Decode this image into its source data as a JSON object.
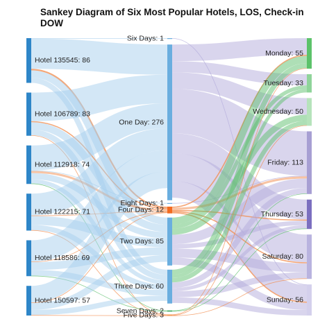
{
  "chart_data": {
    "type": "sankey",
    "title": "Sankey Diagram of Six Most Popular Hotels, LOS, Check-in DOW",
    "columns": [
      {
        "name": "hotel",
        "nodes": [
          {
            "id": "h135545",
            "label": "Hotel 135545: 86",
            "value": 86
          },
          {
            "id": "h106789",
            "label": "Hotel 106789: 83",
            "value": 83
          },
          {
            "id": "h112918",
            "label": "Hotel 112918: 74",
            "value": 74
          },
          {
            "id": "h122215",
            "label": "Hotel 122215: 71",
            "value": 71
          },
          {
            "id": "h118586",
            "label": "Hotel 118586: 69",
            "value": 69
          },
          {
            "id": "h150597",
            "label": "Hotel 150597: 57",
            "value": 57
          }
        ]
      },
      {
        "name": "los",
        "nodes": [
          {
            "id": "six",
            "label": "Six Days: 1",
            "value": 1
          },
          {
            "id": "one",
            "label": "One Day: 276",
            "value": 276
          },
          {
            "id": "eight",
            "label": "Eight Days: 1",
            "value": 1
          },
          {
            "id": "four",
            "label": "Four Days: 12",
            "value": 12
          },
          {
            "id": "two",
            "label": "Two Days: 85",
            "value": 85
          },
          {
            "id": "three",
            "label": "Three Days: 60",
            "value": 60
          },
          {
            "id": "seven",
            "label": "Seven Days: 2",
            "value": 2
          },
          {
            "id": "five",
            "label": "Five Days: 3",
            "value": 3
          }
        ]
      },
      {
        "name": "dow",
        "nodes": [
          {
            "id": "mon",
            "label": "Monday: 55",
            "value": 55
          },
          {
            "id": "tue",
            "label": "Tuesday: 33",
            "value": 33
          },
          {
            "id": "wed",
            "label": "Wednesday: 50",
            "value": 50
          },
          {
            "id": "fri",
            "label": "Friday: 113",
            "value": 113
          },
          {
            "id": "thu",
            "label": "Thursday: 53",
            "value": 53
          },
          {
            "id": "sat",
            "label": "Saturday: 80",
            "value": 80
          },
          {
            "id": "sun",
            "label": "Sunday: 56",
            "value": 56
          }
        ]
      }
    ],
    "links": [
      {
        "source": "h135545",
        "target": "six",
        "value": 1
      },
      {
        "source": "h135545",
        "target": "one",
        "value": 58
      },
      {
        "source": "h135545",
        "target": "four",
        "value": 3
      },
      {
        "source": "h135545",
        "target": "two",
        "value": 14
      },
      {
        "source": "h135545",
        "target": "three",
        "value": 10
      },
      {
        "source": "h106789",
        "target": "one",
        "value": 55
      },
      {
        "source": "h106789",
        "target": "four",
        "value": 2
      },
      {
        "source": "h106789",
        "target": "two",
        "value": 14
      },
      {
        "source": "h106789",
        "target": "three",
        "value": 11
      },
      {
        "source": "h106789",
        "target": "five",
        "value": 1
      },
      {
        "source": "h112918",
        "target": "one",
        "value": 48
      },
      {
        "source": "h112918",
        "target": "eight",
        "value": 1
      },
      {
        "source": "h112918",
        "target": "four",
        "value": 4
      },
      {
        "source": "h112918",
        "target": "two",
        "value": 12
      },
      {
        "source": "h112918",
        "target": "three",
        "value": 8
      },
      {
        "source": "h112918",
        "target": "seven",
        "value": 1
      },
      {
        "source": "h122215",
        "target": "one",
        "value": 42
      },
      {
        "source": "h122215",
        "target": "four",
        "value": 1
      },
      {
        "source": "h122215",
        "target": "two",
        "value": 17
      },
      {
        "source": "h122215",
        "target": "three",
        "value": 10
      },
      {
        "source": "h122215",
        "target": "five",
        "value": 1
      },
      {
        "source": "h118586",
        "target": "one",
        "value": 41
      },
      {
        "source": "h118586",
        "target": "four",
        "value": 1
      },
      {
        "source": "h118586",
        "target": "two",
        "value": 15
      },
      {
        "source": "h118586",
        "target": "three",
        "value": 11
      },
      {
        "source": "h118586",
        "target": "seven",
        "value": 1
      },
      {
        "source": "h150597",
        "target": "one",
        "value": 32
      },
      {
        "source": "h150597",
        "target": "four",
        "value": 1
      },
      {
        "source": "h150597",
        "target": "two",
        "value": 13
      },
      {
        "source": "h150597",
        "target": "three",
        "value": 10
      },
      {
        "source": "h150597",
        "target": "five",
        "value": 1
      },
      {
        "source": "six",
        "target": "sun",
        "value": 1
      },
      {
        "source": "one",
        "target": "mon",
        "value": 30
      },
      {
        "source": "one",
        "target": "tue",
        "value": 20
      },
      {
        "source": "one",
        "target": "wed",
        "value": 30
      },
      {
        "source": "one",
        "target": "fri",
        "value": 80
      },
      {
        "source": "one",
        "target": "thu",
        "value": 36
      },
      {
        "source": "one",
        "target": "sat",
        "value": 50
      },
      {
        "source": "one",
        "target": "sun",
        "value": 30
      },
      {
        "source": "eight",
        "target": "fri",
        "value": 1
      },
      {
        "source": "four",
        "target": "mon",
        "value": 2
      },
      {
        "source": "four",
        "target": "fri",
        "value": 4
      },
      {
        "source": "four",
        "target": "thu",
        "value": 2
      },
      {
        "source": "four",
        "target": "sat",
        "value": 2
      },
      {
        "source": "four",
        "target": "sun",
        "value": 2
      },
      {
        "source": "two",
        "target": "mon",
        "value": 13
      },
      {
        "source": "two",
        "target": "tue",
        "value": 7
      },
      {
        "source": "two",
        "target": "wed",
        "value": 11
      },
      {
        "source": "two",
        "target": "fri",
        "value": 17
      },
      {
        "source": "two",
        "target": "thu",
        "value": 8
      },
      {
        "source": "two",
        "target": "sat",
        "value": 16
      },
      {
        "source": "two",
        "target": "sun",
        "value": 13
      },
      {
        "source": "three",
        "target": "mon",
        "value": 9
      },
      {
        "source": "three",
        "target": "tue",
        "value": 6
      },
      {
        "source": "three",
        "target": "wed",
        "value": 8
      },
      {
        "source": "three",
        "target": "fri",
        "value": 10
      },
      {
        "source": "three",
        "target": "thu",
        "value": 6
      },
      {
        "source": "three",
        "target": "sat",
        "value": 11
      },
      {
        "source": "three",
        "target": "sun",
        "value": 10
      },
      {
        "source": "seven",
        "target": "fri",
        "value": 1
      },
      {
        "source": "seven",
        "target": "thu",
        "value": 1
      },
      {
        "source": "five",
        "target": "mon",
        "value": 1
      },
      {
        "source": "five",
        "target": "wed",
        "value": 1
      },
      {
        "source": "five",
        "target": "sat",
        "value": 1
      }
    ],
    "colors": {
      "hotel_node": "#2e86c8",
      "los_node": "#6aaedf",
      "four_node": "#f26b21",
      "seven_node": "#3aa55c",
      "five_node": "#f5a76a",
      "mon_node": "#5cc26a",
      "tue_node": "#8fd49a",
      "wed_node": "#b6e3bb",
      "fri_node": "#a79fd3",
      "thu_node": "#7b6fbf",
      "sat_node": "#b9b3df",
      "sun_node": "#d4d0ec",
      "link_default": "#a8cfee",
      "link_orange": "#f28a4a",
      "link_green": "#5dbf6e",
      "link_purple": "#b3acdc"
    }
  }
}
